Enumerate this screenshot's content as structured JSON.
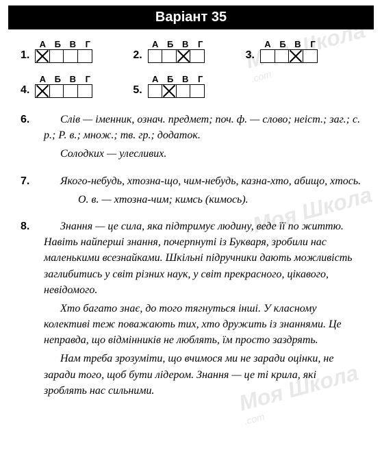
{
  "title": "Варіант 35",
  "watermark": {
    "main": "Моя Школа",
    "sub": ".com"
  },
  "headers": [
    "А",
    "Б",
    "В",
    "Г"
  ],
  "answers": [
    {
      "num": "1.",
      "marked": 0
    },
    {
      "num": "2.",
      "marked": 2
    },
    {
      "num": "3.",
      "marked": 2
    },
    {
      "num": "4.",
      "marked": 0
    },
    {
      "num": "5.",
      "marked": 1
    }
  ],
  "items": [
    {
      "num": "6.",
      "paragraphs": [
        {
          "text": "Слів — іменник, означ. предмет; поч. ф. — слово; неіст.; заг.; с. р.; Р. в.; множ.; тв. гр.; додаток.",
          "cls": "indent"
        },
        {
          "text": "Солодких — улесливих.",
          "cls": "indent"
        }
      ]
    },
    {
      "num": "7.",
      "paragraphs": [
        {
          "text": "Якого-небудь, хтозна-що, чим-небудь, казна-хто, абищо, хтось.",
          "cls": "indent"
        },
        {
          "text": "О. в. — хтозна-чим; кимсь (кимось).",
          "cls": "center-indent"
        }
      ]
    },
    {
      "num": "8.",
      "paragraphs": [
        {
          "text": "Знання — це сила, яка підтримує людину, веде її по життю. Навіть найперші знання, почерпнуті із Букваря, зробили нас маленькими всезнайками. Шкільні підручники дають можливість заглибитись у світ різних наук, у світ прекрасного, цікавого, невідомого.",
          "cls": "indent"
        },
        {
          "text": "Хто багато знає, до того тягнуться інші. У класному колективі теж поважають тих, хто дружить із знаннями. Це неправда, що відмінників не люблять, їм просто заздрять.",
          "cls": "indent"
        },
        {
          "text": "Нам треба зрозуміти, що вчимося ми не заради оцінки, не заради того, щоб бути лідером. Знання — це ті крила, які зроблять нас сильними.",
          "cls": "indent"
        }
      ]
    }
  ],
  "styles": {
    "background": "#ffffff",
    "title_bg": "#000000",
    "title_color": "#ffffff",
    "watermark_color": "#e8e8e8",
    "cell_border": "#000000"
  }
}
